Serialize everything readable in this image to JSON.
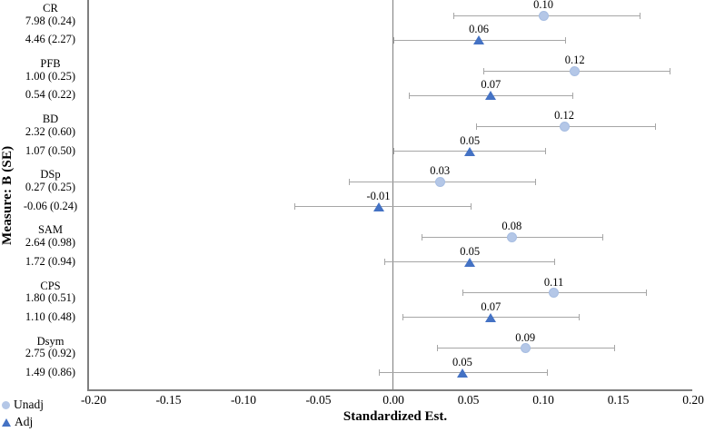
{
  "figure": {
    "y_axis_title": "Measure: B (SE)",
    "x_axis_title": "Standardized Est.",
    "legend": [
      {
        "label": "Unadj",
        "marker": "circle-icon",
        "color": "#b4c7e7"
      },
      {
        "label": "Adj",
        "marker": "triangle-icon",
        "color": "#4472c4"
      }
    ]
  },
  "chart_data": {
    "type": "scatter",
    "subtype": "forest-plot-with-horizontal-error-bars",
    "title": "",
    "xlabel": "Standardized Est.",
    "ylabel": "Measure: B (SE)",
    "xlim": [
      -0.2,
      0.2
    ],
    "x_ticks": [
      -0.2,
      -0.15,
      -0.1,
      -0.05,
      0.0,
      0.05,
      0.1,
      0.15,
      0.2
    ],
    "x_tick_labels": [
      "-0.20",
      "-0.15",
      "-0.10",
      "-0.05",
      "0.00",
      "0.05",
      "0.10",
      "0.15",
      "0.20"
    ],
    "grid": false,
    "zero_reference_line": true,
    "legend_position": "bottom-left",
    "error_bar_color": "#a6a6a6",
    "axis_color": "#7f7f7f",
    "series": [
      {
        "name": "Unadj",
        "marker": "circle",
        "color": "#b4c7e7"
      },
      {
        "name": "Adj",
        "marker": "triangle",
        "color": "#4472c4"
      }
    ],
    "groups": [
      {
        "measure": "CR",
        "unadj": {
          "b_se": "7.98 (0.24)",
          "label": "0.10",
          "est": 0.1,
          "ci": [
            0.04,
            0.165
          ]
        },
        "adj": {
          "b_se": "4.46 (2.27)",
          "label": "0.06",
          "est": 0.057,
          "ci": [
            0.0,
            0.115
          ]
        }
      },
      {
        "measure": "PFB",
        "unadj": {
          "b_se": "1.00 (0.25)",
          "label": "0.12",
          "est": 0.121,
          "ci": [
            0.06,
            0.185
          ]
        },
        "adj": {
          "b_se": "0.54 (0.22)",
          "label": "0.07",
          "est": 0.065,
          "ci": [
            0.01,
            0.12
          ]
        }
      },
      {
        "measure": "BD",
        "unadj": {
          "b_se": "2.32 (0.60)",
          "label": "0.12",
          "est": 0.114,
          "ci": [
            0.055,
            0.175
          ]
        },
        "adj": {
          "b_se": "1.07 (0.50)",
          "label": "0.05",
          "est": 0.051,
          "ci": [
            0.0,
            0.102
          ]
        }
      },
      {
        "measure": "DSp",
        "unadj": {
          "b_se": "0.27 (0.25)",
          "label": "0.03",
          "est": 0.031,
          "ci": [
            -0.03,
            0.095
          ]
        },
        "adj": {
          "b_se": "-0.06 (0.24)",
          "label": "-0.01",
          "est": -0.01,
          "ci": [
            -0.066,
            0.052
          ]
        }
      },
      {
        "measure": "SAM",
        "unadj": {
          "b_se": "2.64 (0.98)",
          "label": "0.08",
          "est": 0.079,
          "ci": [
            0.019,
            0.14
          ]
        },
        "adj": {
          "b_se": "1.72 (0.94)",
          "label": "0.05",
          "est": 0.051,
          "ci": [
            -0.006,
            0.108
          ]
        }
      },
      {
        "measure": "CPS",
        "unadj": {
          "b_se": "1.80 (0.51)",
          "label": "0.11",
          "est": 0.107,
          "ci": [
            0.046,
            0.169
          ]
        },
        "adj": {
          "b_se": "1.10 (0.48)",
          "label": "0.07",
          "est": 0.065,
          "ci": [
            0.006,
            0.124
          ]
        }
      },
      {
        "measure": "Dsym",
        "unadj": {
          "b_se": "2.75 (0.92)",
          "label": "0.09",
          "est": 0.088,
          "ci": [
            0.029,
            0.148
          ]
        },
        "adj": {
          "b_se": "1.49 (0.86)",
          "label": "0.05",
          "est": 0.046,
          "ci": [
            -0.01,
            0.103
          ]
        }
      }
    ]
  }
}
